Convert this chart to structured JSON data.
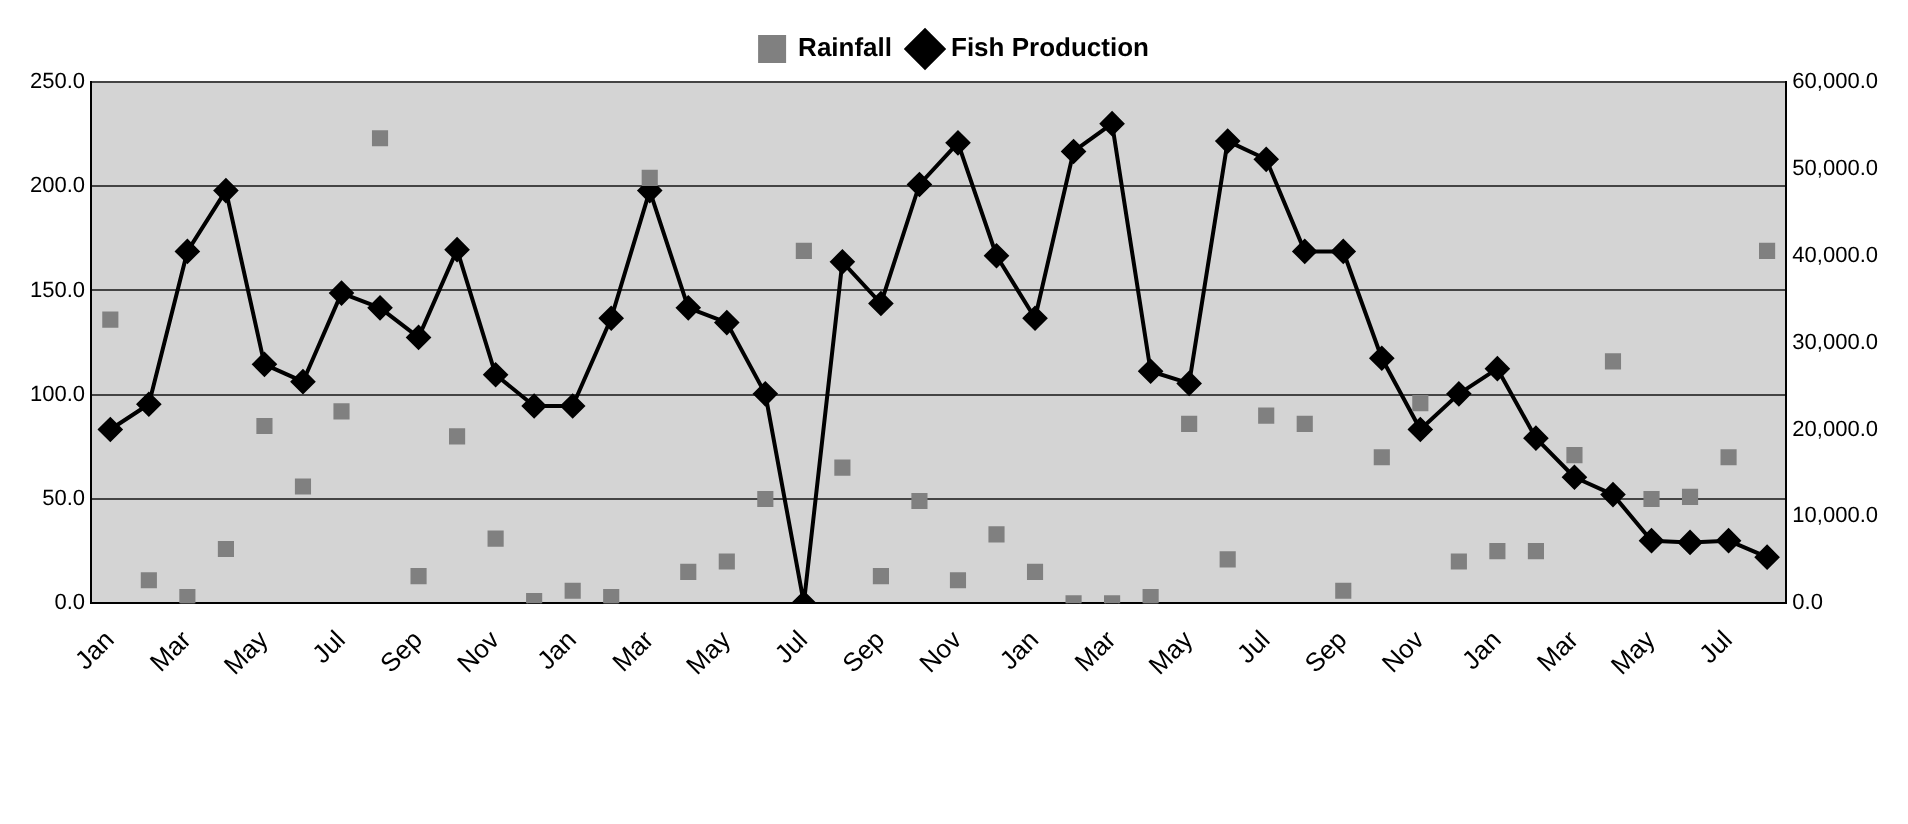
{
  "chart_data": {
    "type": "line",
    "categories": [
      "Jan",
      null,
      "Mar",
      null,
      "May",
      null,
      "Jul",
      null,
      "Sep",
      null,
      "Nov",
      null,
      "Jan",
      null,
      "Mar",
      null,
      "May",
      null,
      "Jul",
      null,
      "Sep",
      null,
      "Nov",
      null,
      "Jan",
      null,
      "Mar",
      null,
      "May",
      null,
      "Jul",
      null,
      "Sep",
      null,
      "Nov",
      null,
      "Jan",
      null,
      "Mar",
      null,
      "May",
      null,
      "Jul",
      null
    ],
    "series": [
      {
        "name": "Rainfall",
        "type": "scatter",
        "marker": "square",
        "color": "#808080",
        "values": [
          136,
          11,
          3,
          26,
          85,
          56,
          92,
          223,
          13,
          80,
          31,
          1,
          6,
          3,
          204,
          15,
          20,
          50,
          169,
          65,
          13,
          49,
          11,
          33,
          15,
          0,
          0,
          3,
          86,
          21,
          90,
          86,
          6,
          70,
          96,
          20,
          25,
          25,
          71,
          116,
          50,
          51,
          70,
          169
        ]
      },
      {
        "name": "Fish Production",
        "marker": "diamond",
        "axis": "y2",
        "color": "#000000",
        "values": [
          20000,
          22900,
          40500,
          47500,
          27500,
          25500,
          35700,
          34000,
          30600,
          40700,
          26300,
          22700,
          22700,
          32800,
          47500,
          34000,
          32300,
          24100,
          0,
          39300,
          34500,
          48200,
          53000,
          40000,
          32800,
          52000,
          55200,
          26700,
          25300,
          53200,
          51100,
          40500,
          40500,
          28200,
          20000,
          24100,
          27000,
          19000,
          14500,
          12500,
          7200,
          7000,
          7200,
          5300
        ]
      }
    ],
    "ylim": [
      0,
      250
    ],
    "yticks": [
      {
        "value": 0,
        "label": "0.0"
      },
      {
        "value": 50,
        "label": "50.0"
      },
      {
        "value": 100,
        "label": "100.0"
      },
      {
        "value": 150,
        "label": "150.0"
      },
      {
        "value": 200,
        "label": "200.0"
      },
      {
        "value": 250,
        "label": "250.0"
      }
    ],
    "y2lim": [
      0,
      60000
    ],
    "y2ticks": [
      {
        "value": 0,
        "label": "0.0"
      },
      {
        "value": 10000,
        "label": "10,000.0"
      },
      {
        "value": 20000,
        "label": "20,000.0"
      },
      {
        "value": 30000,
        "label": "30,000.0"
      },
      {
        "value": 40000,
        "label": "40,000.0"
      },
      {
        "value": 50000,
        "label": "50,000.0"
      },
      {
        "value": 60000,
        "label": "60,000.0"
      }
    ],
    "grid": "y",
    "legend": "top"
  }
}
